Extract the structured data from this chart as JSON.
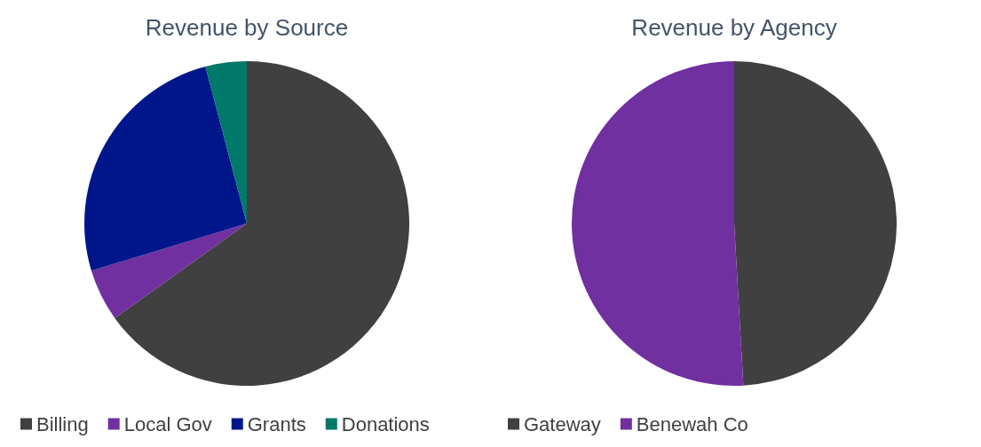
{
  "chart_data": [
    {
      "type": "pie",
      "title": "Revenue by Source",
      "categories": [
        "Billing",
        "Local Gov",
        "Grants",
        "Donations"
      ],
      "values": [
        65.1,
        5.2,
        25.6,
        4.1
      ],
      "colors": [
        "#404040",
        "#7030a0",
        "#00168a",
        "#00786a"
      ],
      "legend": "bottom left"
    },
    {
      "type": "pie",
      "title": "Revenue by Agency",
      "categories": [
        "Gateway",
        "Benewah Co"
      ],
      "values": [
        49.1,
        50.9
      ],
      "colors": [
        "#404040",
        "#7030a0"
      ],
      "legend": "bottom left"
    }
  ]
}
